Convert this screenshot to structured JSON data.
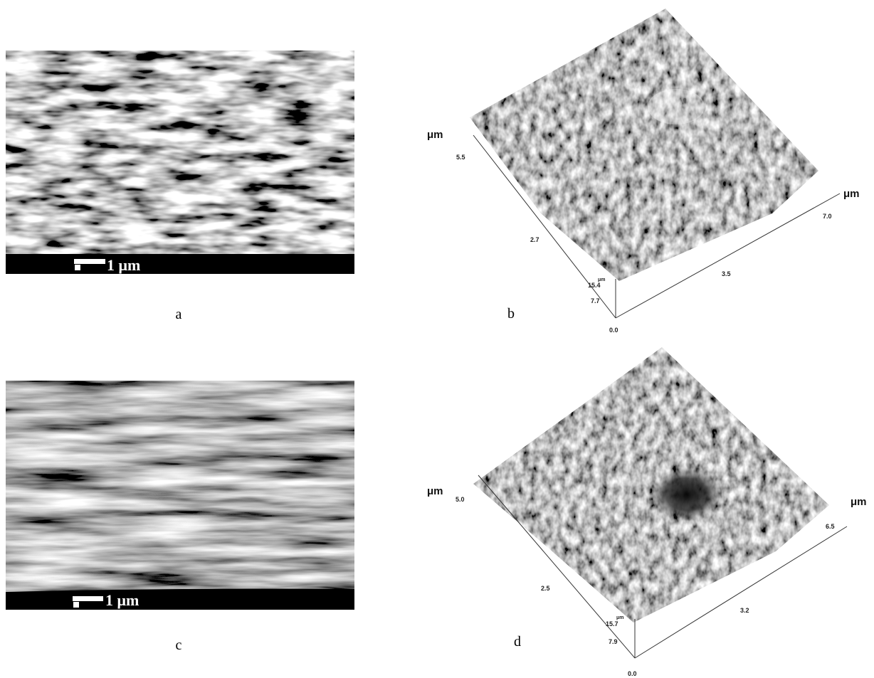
{
  "panels": [
    {
      "label": "a",
      "scale_bar": "1 μm"
    },
    {
      "label": "b",
      "y_unit": "μm",
      "y_ticks": [
        "5.5",
        "2.7"
      ],
      "x_unit": "μm",
      "x_ticks": [
        "7.0",
        "3.5"
      ],
      "z_unit": "μm",
      "z_ticks": [
        "15.4",
        "7.7",
        "0.0"
      ]
    },
    {
      "label": "c",
      "scale_bar": "1 μm"
    },
    {
      "label": "d",
      "y_unit": "μm",
      "y_ticks": [
        "5.0",
        "2.5"
      ],
      "x_unit": "μm",
      "x_ticks": [
        "6.5",
        "3.2"
      ],
      "z_unit": "μm",
      "z_ticks": [
        "15.7",
        "7.9",
        "0.0"
      ]
    }
  ]
}
